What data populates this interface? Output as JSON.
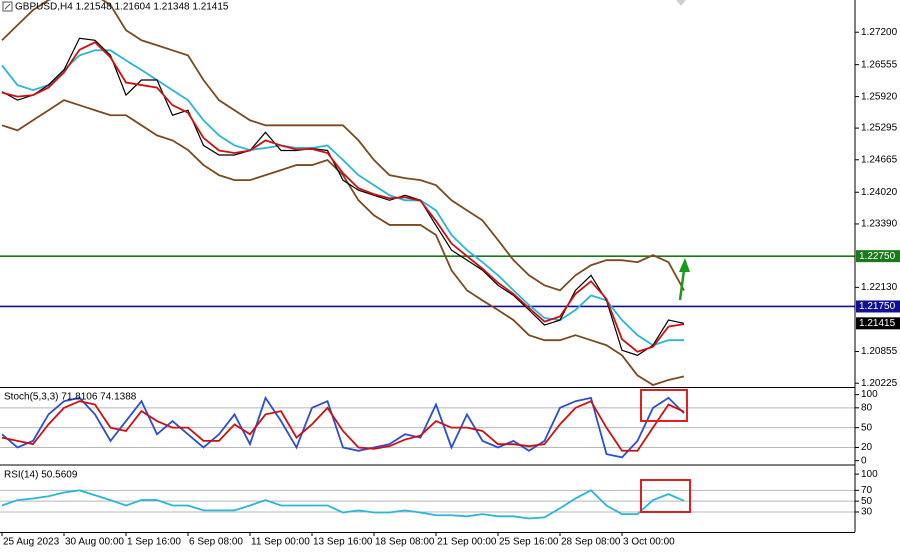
{
  "chart_data": [
    {
      "type": "line",
      "title": "GBPUSD,H4 1.21548 1.21604 1.21348 1.21415",
      "categories": [
        "25 Aug 2023",
        null,
        null,
        null,
        "30 Aug 00:00",
        null,
        null,
        null,
        "1 Sep 16:00",
        null,
        null,
        null,
        "6 Sep 08:00",
        null,
        null,
        null,
        "11 Sep 00:00",
        null,
        null,
        null,
        "13 Sep 16:00",
        null,
        null,
        null,
        "18 Sep 08:00",
        null,
        null,
        null,
        "21 Sep 00:00",
        null,
        null,
        null,
        "25 Sep 16:00",
        null,
        null,
        null,
        "28 Sep 08:00",
        null,
        null,
        null,
        "3 Oct 00:00",
        null,
        null,
        null,
        null
      ],
      "series": [
        {
          "color": "#7b4a1e",
          "values": [
            1.2704,
            1.2734,
            1.2764,
            1.2784,
            1.2794,
            1.2803,
            1.2794,
            1.2774,
            1.2724,
            1.2704,
            1.2694,
            1.2684,
            1.2674,
            1.2625,
            1.2585,
            1.2565,
            1.2545,
            1.2535,
            1.2535,
            1.2535,
            1.2535,
            1.2535,
            1.2535,
            1.2505,
            1.2466,
            1.2436,
            1.243,
            1.2426,
            1.2416,
            1.2386,
            1.2366,
            1.2346,
            1.2307,
            1.2267,
            1.2237,
            1.2217,
            1.2207,
            1.2237,
            1.2257,
            1.2267,
            1.2267,
            1.2263,
            1.2277,
            1.2263,
            1.2207
          ]
        },
        {
          "color": "#7b4a1e",
          "values": [
            1.2535,
            1.2525,
            1.2545,
            1.2565,
            1.2585,
            1.2575,
            1.2565,
            1.2555,
            1.2555,
            1.2535,
            1.2515,
            1.2505,
            1.2486,
            1.2456,
            1.2436,
            1.2426,
            1.2426,
            1.2436,
            1.2446,
            1.2456,
            1.2456,
            1.2466,
            1.2436,
            1.2386,
            1.2356,
            1.2337,
            1.2337,
            1.2337,
            1.2317,
            1.2247,
            1.2207,
            1.2187,
            1.2168,
            1.2148,
            1.2118,
            1.2108,
            1.2108,
            1.2118,
            1.2108,
            1.2098,
            1.2078,
            1.2038,
            1.2019,
            1.2029,
            1.2036
          ]
        },
        {
          "color": "#29b6d8",
          "values": [
            1.2654,
            1.2615,
            1.2605,
            1.2615,
            1.2645,
            1.2674,
            1.2684,
            1.2684,
            1.2664,
            1.2645,
            1.2625,
            1.2605,
            1.2585,
            1.2545,
            1.2515,
            1.2495,
            1.2486,
            1.249,
            1.2495,
            1.249,
            1.249,
            1.2495,
            1.2466,
            1.2436,
            1.2416,
            1.2396,
            1.2386,
            1.2386,
            1.2366,
            1.2317,
            1.2287,
            1.2263,
            1.2237,
            1.2207,
            1.2178,
            1.2152,
            1.2148,
            1.2168,
            1.2197,
            1.2187,
            1.2148,
            1.2118,
            1.2098,
            1.2108,
            1.2108
          ]
        },
        {
          "color": "#000000",
          "values": [
            1.2602,
            1.2585,
            1.2595,
            1.2615,
            1.2645,
            1.2708,
            1.2704,
            1.2674,
            1.2595,
            1.2625,
            1.2625,
            1.2555,
            1.2565,
            1.2495,
            1.2476,
            1.2476,
            1.2485,
            1.2521,
            1.2485,
            1.2485,
            1.2489,
            1.2485,
            1.2426,
            1.2406,
            1.2396,
            1.2386,
            1.2396,
            1.2386,
            1.2336,
            1.2287,
            1.2267,
            1.2247,
            1.2217,
            1.2197,
            1.2168,
            1.2138,
            1.2148,
            1.2207,
            1.2237,
            1.2187,
            1.2088,
            1.2078,
            1.2098,
            1.2148,
            1.21415
          ]
        },
        {
          "color": "#d01010",
          "values": [
            1.26,
            1.2592,
            1.2595,
            1.261,
            1.264,
            1.2685,
            1.27,
            1.267,
            1.262,
            1.2615,
            1.261,
            1.2575,
            1.256,
            1.251,
            1.2485,
            1.248,
            1.2485,
            1.2505,
            1.2495,
            1.2487,
            1.2488,
            1.248,
            1.244,
            1.241,
            1.2398,
            1.239,
            1.2392,
            1.2385,
            1.2345,
            1.23,
            1.2275,
            1.225,
            1.2222,
            1.22,
            1.2172,
            1.2145,
            1.2155,
            1.22,
            1.2225,
            1.219,
            1.211,
            1.2085,
            1.2095,
            1.2135,
            1.214
          ]
        }
      ],
      "ylim": [
        1.2015,
        1.2784
      ],
      "yticks": [
        {
          "value": 1.272,
          "label": "1.27200"
        },
        {
          "value": 1.26555,
          "label": "1.26555"
        },
        {
          "value": 1.2592,
          "label": "1.25920"
        },
        {
          "value": 1.25295,
          "label": "1.25295"
        },
        {
          "value": 1.24665,
          "label": "1.24665"
        },
        {
          "value": 1.2402,
          "label": "1.24020"
        },
        {
          "value": 1.2339,
          "label": "1.23390"
        },
        {
          "value": 1.2213,
          "label": "1.22130"
        },
        {
          "value": 1.20855,
          "label": "1.20855"
        },
        {
          "value": 1.20225,
          "label": "1.20225"
        }
      ],
      "levels": [
        {
          "value": 1.2275,
          "label": "1.22750",
          "color": "#1a7a1a"
        },
        {
          "value": 1.2175,
          "label": "1.21750",
          "color": "#101090"
        },
        {
          "value": 1.21415,
          "label": "1.21415",
          "color": "#000000"
        }
      ]
    },
    {
      "type": "line",
      "title": "Stoch(5,3,3) 71.8106 74.1388",
      "series": [
        {
          "color": "#2a4fd6",
          "values": [
            40,
            20,
            30,
            70,
            90,
            95,
            70,
            30,
            60,
            90,
            40,
            60,
            40,
            20,
            40,
            70,
            25,
            95,
            60,
            20,
            80,
            90,
            20,
            15,
            20,
            25,
            40,
            35,
            85,
            20,
            70,
            30,
            20,
            30,
            15,
            30,
            80,
            90,
            95,
            10,
            5,
            30,
            80,
            95,
            71.8106
          ]
        },
        {
          "color": "#d01010",
          "values": [
            35,
            30,
            25,
            55,
            80,
            90,
            85,
            50,
            45,
            75,
            60,
            50,
            50,
            30,
            30,
            55,
            40,
            70,
            75,
            35,
            55,
            80,
            45,
            20,
            18,
            22,
            32,
            38,
            60,
            50,
            50,
            45,
            25,
            25,
            22,
            25,
            55,
            80,
            90,
            50,
            15,
            15,
            50,
            85,
            74.1388
          ]
        }
      ],
      "ylim": [
        -5,
        110
      ],
      "yticks": [
        100,
        80,
        50,
        20,
        0
      ],
      "grid": true
    },
    {
      "type": "line",
      "title": "RSI(14) 50.5609",
      "series": [
        {
          "color": "#29b6d8",
          "values": [
            42,
            52,
            55,
            59,
            66,
            70,
            61,
            52,
            42,
            52,
            52,
            42,
            42,
            33,
            33,
            33,
            42,
            52,
            42,
            42,
            42,
            42,
            29,
            33,
            29,
            29,
            33,
            29,
            24,
            24,
            22,
            26,
            22,
            22,
            18,
            20,
            37,
            55,
            70,
            42,
            26,
            26,
            52,
            63,
            50.5609
          ]
        }
      ],
      "ylim": [
        -7,
        115
      ],
      "yticks": [
        100,
        70,
        50,
        30
      ],
      "grid": true
    }
  ]
}
